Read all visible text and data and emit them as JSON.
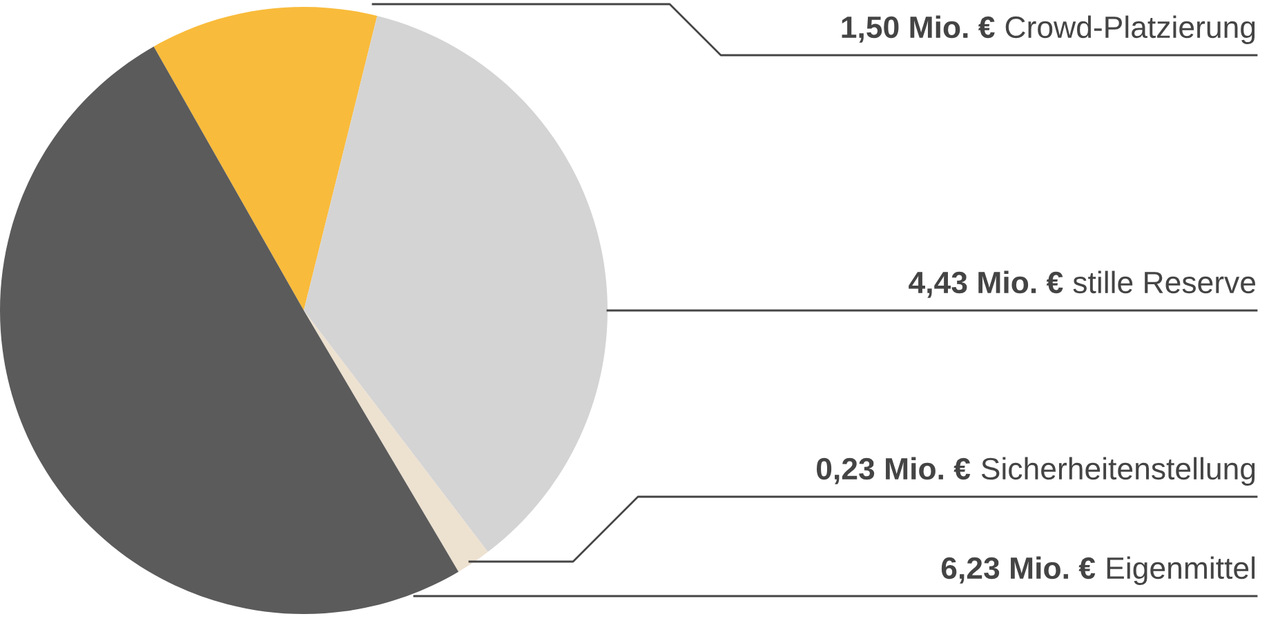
{
  "chart_data": {
    "type": "pie",
    "categories": [
      "Crowd-Platzierung",
      "stille Reserve",
      "Sicherheitenstellung",
      "Eigenmittel"
    ],
    "values": [
      1.5,
      4.43,
      0.23,
      6.23
    ],
    "value_labels": [
      "1,50 Mio. €",
      "4,43 Mio. €",
      "0,23 Mio. €",
      "6,23 Mio. €"
    ],
    "colors": [
      "#f9bb3b",
      "#d4d4d4",
      "#ede1d0",
      "#5b5b5b"
    ],
    "legend": false
  }
}
